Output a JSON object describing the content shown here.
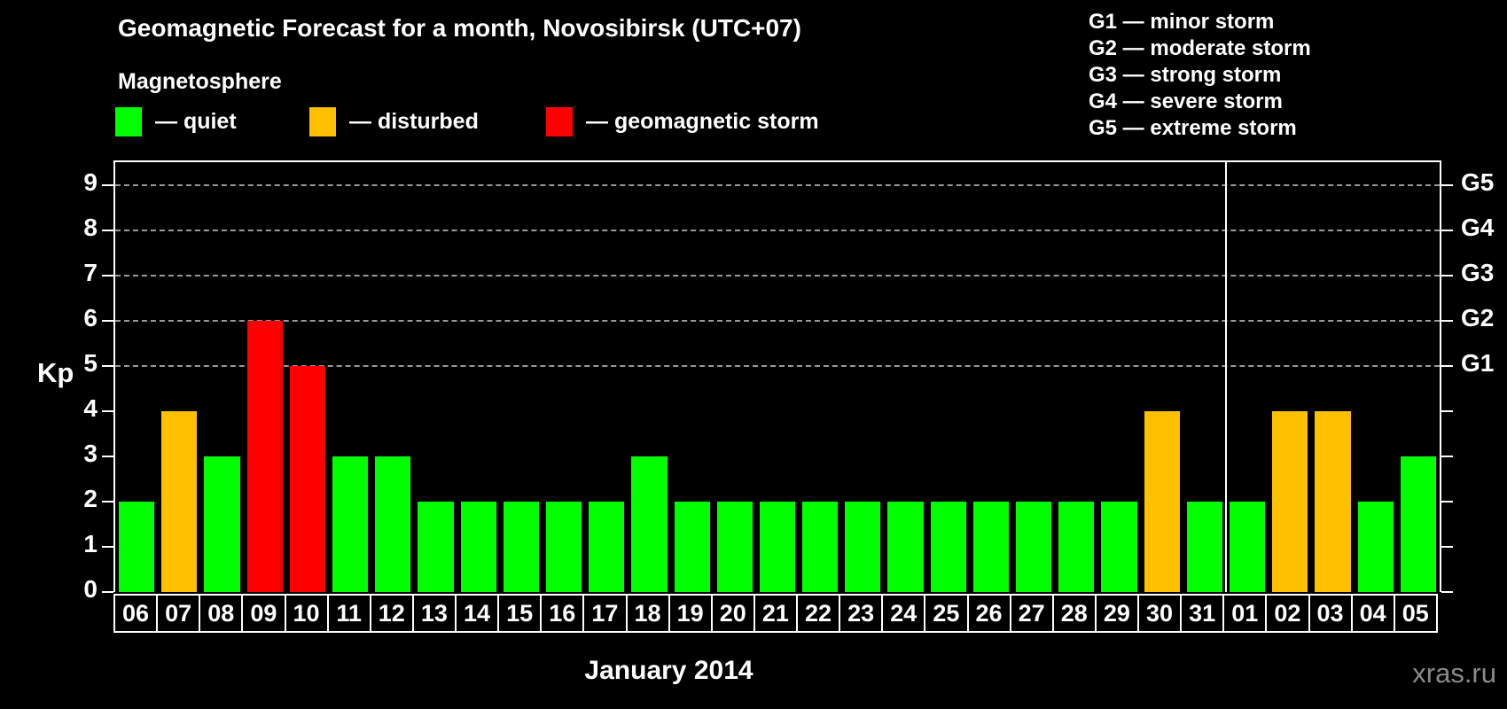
{
  "title": "Geomagnetic Forecast for a month, Novosibirsk (UTC+07)",
  "subtitle": "Magnetosphere",
  "legend": {
    "items": [
      {
        "name": "quiet",
        "label": "— quiet",
        "color": "#00ff00"
      },
      {
        "name": "disturbed",
        "label": "— disturbed",
        "color": "#ffc000"
      },
      {
        "name": "storm",
        "label": "— geomagnetic storm",
        "color": "#ff0000"
      }
    ]
  },
  "storm_scale_legend": [
    "G1 — minor storm",
    "G2 — moderate storm",
    "G3 — strong storm",
    "G4 — severe storm",
    "G5 — extreme storm"
  ],
  "watermark": "xras.ru",
  "chart_data": {
    "type": "bar",
    "title": "Geomagnetic Forecast for a month, Novosibirsk (UTC+07)",
    "ylabel": "Kp",
    "xlabel": "January 2014",
    "ylim": [
      0,
      9.5
    ],
    "yticks": [
      0,
      1,
      2,
      3,
      4,
      5,
      6,
      7,
      8,
      9
    ],
    "gridlines_kp": [
      5,
      6,
      7,
      8,
      9
    ],
    "grid_style": "dashed",
    "right_axis_labels": [
      {
        "kp": 9,
        "label": "G5"
      },
      {
        "kp": 8,
        "label": "G4"
      },
      {
        "kp": 7,
        "label": "G3"
      },
      {
        "kp": 6,
        "label": "G2"
      },
      {
        "kp": 5,
        "label": "G1"
      }
    ],
    "status_colors": {
      "quiet": "#00ff00",
      "disturbed": "#ffc000",
      "storm": "#ff0000"
    },
    "month_boundary_after_index": 25,
    "categories": [
      "06",
      "07",
      "08",
      "09",
      "10",
      "11",
      "12",
      "13",
      "14",
      "15",
      "16",
      "17",
      "18",
      "19",
      "20",
      "21",
      "22",
      "23",
      "24",
      "25",
      "26",
      "27",
      "28",
      "29",
      "30",
      "31",
      "01",
      "02",
      "03",
      "04",
      "05"
    ],
    "series": [
      {
        "name": "Kp forecast",
        "values": [
          2,
          4,
          3,
          6,
          5,
          3,
          3,
          2,
          2,
          2,
          2,
          2,
          3,
          2,
          2,
          2,
          2,
          2,
          2,
          2,
          2,
          2,
          2,
          2,
          4,
          2,
          2,
          4,
          4,
          2,
          3
        ],
        "statuses": [
          "quiet",
          "disturbed",
          "quiet",
          "storm",
          "storm",
          "quiet",
          "quiet",
          "quiet",
          "quiet",
          "quiet",
          "quiet",
          "quiet",
          "quiet",
          "quiet",
          "quiet",
          "quiet",
          "quiet",
          "quiet",
          "quiet",
          "quiet",
          "quiet",
          "quiet",
          "quiet",
          "quiet",
          "disturbed",
          "quiet",
          "quiet",
          "disturbed",
          "disturbed",
          "quiet",
          "quiet"
        ]
      }
    ]
  }
}
